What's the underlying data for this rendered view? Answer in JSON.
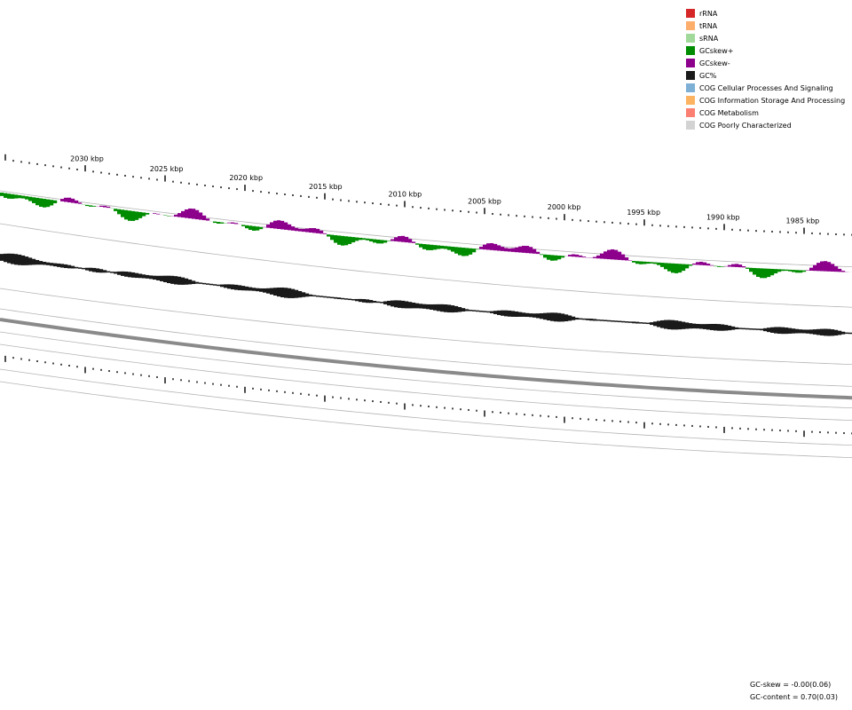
{
  "ticks": [
    {
      "label": "2030 kbp"
    },
    {
      "label": "2025 kbp"
    },
    {
      "label": "2020 kbp"
    },
    {
      "label": "2015 kbp"
    },
    {
      "label": "2010 kbp"
    },
    {
      "label": "2005 kbp"
    },
    {
      "label": "2000 kbp"
    },
    {
      "label": "1995 kbp"
    },
    {
      "label": "1990 kbp"
    },
    {
      "label": "1985 kbp"
    }
  ],
  "legend": [
    {
      "label": "rRNA",
      "color": "#d62728"
    },
    {
      "label": "tRNA",
      "color": "#fdae6b"
    },
    {
      "label": "sRNA",
      "color": "#a1d99b"
    },
    {
      "label": "GCskew+",
      "color": "#008c00"
    },
    {
      "label": "GCskew-",
      "color": "#8c008c"
    },
    {
      "label": "GC%",
      "color": "#1a1a1a"
    },
    {
      "label": "COG Cellular Processes And Signaling",
      "color": "#7eb0d5"
    },
    {
      "label": "COG Information Storage And Processing",
      "color": "#fdb462"
    },
    {
      "label": "COG Metabolism",
      "color": "#fb8072"
    },
    {
      "label": "COG Poorly Characterized",
      "color": "#d3d3d3"
    }
  ],
  "stats": {
    "gc_skew": "GC-skew = -0.00(0.06)",
    "gc_content": "GC-content = 0.70(0.03)"
  },
  "colors": {
    "backbone": "#8a8a8a",
    "track_line": "#b5b5b5",
    "tick": "#000000"
  }
}
